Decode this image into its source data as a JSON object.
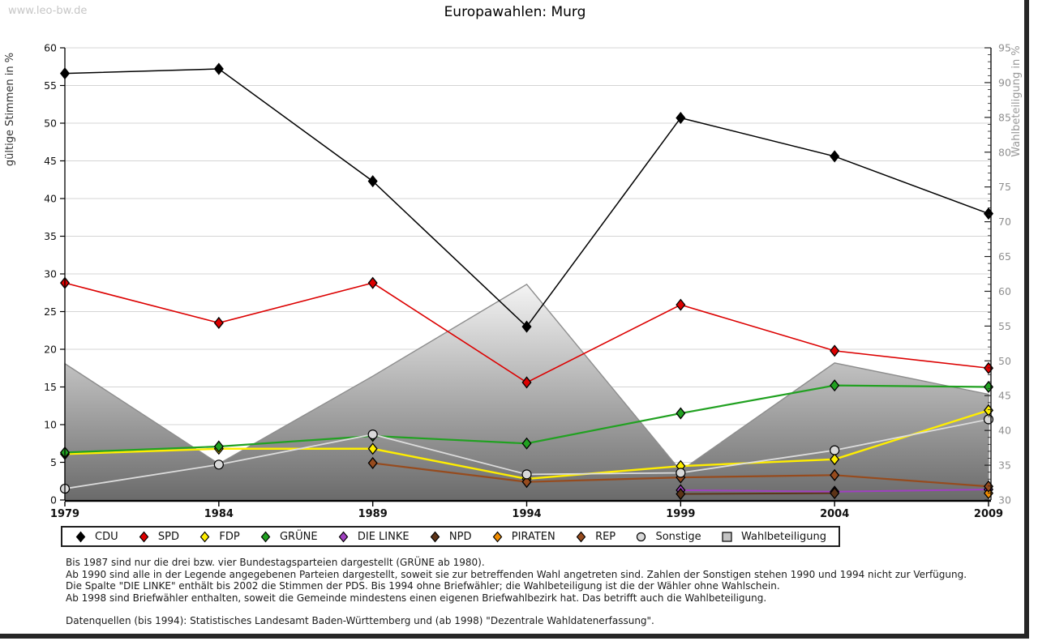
{
  "watermark": "www.leo-bw.de",
  "title": "Europawahlen: Murg",
  "notes": [
    "Bis 1987 sind nur die drei bzw. vier Bundestagsparteien dargestellt (GRÜNE ab 1980).",
    "Ab 1990 sind alle in der Legende angegebenen Parteien dargestellt, soweit sie zur betreffenden Wahl angetreten sind. Zahlen der Sonstigen stehen 1990 und 1994 nicht zur Verfügung.",
    "Die Spalte \"DIE LINKE\" enthält bis 2002 die Stimmen der PDS. Bis 1994 ohne Briefwähler; die Wahlbeteiligung ist die der Wähler ohne Wahlschein.",
    "Ab 1998 sind Briefwähler enthalten, soweit die Gemeinde mindestens einen eigenen Briefwahlbezirk hat. Das betrifft auch die Wahlbeteiligung."
  ],
  "source": "Datenquellen (bis 1994): Statistisches Landesamt Baden-Württemberg und (ab 1998) \"Dezentrale Wahldatenerfassung\".",
  "chart_data": {
    "type": "line",
    "title": "Europawahlen: Murg",
    "x": [
      1979,
      1984,
      1989,
      1994,
      1999,
      2004,
      2009
    ],
    "left_axis": {
      "label": "gültige Stimmen in %",
      "min": 0,
      "max": 60,
      "step": 5
    },
    "right_axis": {
      "label": "Wahlbeteiligung in %",
      "min": 30,
      "max": 95,
      "step": 5
    },
    "grid": true,
    "legend_position": "bottom",
    "series": [
      {
        "name": "CDU",
        "color": "#000000",
        "marker": "diamond",
        "axis": "left",
        "values": [
          56.6,
          57.2,
          42.3,
          23.0,
          50.7,
          45.6,
          38.0
        ]
      },
      {
        "name": "SPD",
        "color": "#dc0000",
        "marker": "diamond",
        "axis": "left",
        "values": [
          28.8,
          23.5,
          28.8,
          15.6,
          25.9,
          19.8,
          17.5
        ]
      },
      {
        "name": "FDP",
        "color": "#ffee00",
        "marker": "diamond",
        "axis": "left",
        "values": [
          6.1,
          6.8,
          6.8,
          2.8,
          4.5,
          5.4,
          11.9
        ]
      },
      {
        "name": "GRÜNE",
        "color": "#21a121",
        "marker": "diamond",
        "axis": "left",
        "values": [
          6.3,
          7.1,
          8.5,
          7.5,
          11.5,
          15.2,
          15.0
        ]
      },
      {
        "name": "DIE LINKE",
        "color": "#a040c0",
        "marker": "diamond",
        "axis": "left",
        "values": [
          null,
          null,
          null,
          null,
          1.3,
          1.1,
          1.4
        ]
      },
      {
        "name": "NPD",
        "color": "#5c3317",
        "marker": "diamond",
        "axis": "left",
        "values": [
          null,
          null,
          null,
          null,
          0.8,
          0.9,
          null
        ]
      },
      {
        "name": "PIRATEN",
        "color": "#f08c00",
        "marker": "diamond",
        "axis": "left",
        "values": [
          null,
          null,
          null,
          null,
          null,
          null,
          0.9
        ]
      },
      {
        "name": "REP",
        "color": "#964b1e",
        "marker": "diamond",
        "axis": "left",
        "values": [
          null,
          null,
          4.9,
          2.4,
          3.0,
          3.3,
          1.8
        ]
      },
      {
        "name": "Sonstige",
        "color": "#d9d9d9",
        "line_color": "#dcdcdc",
        "marker": "circle",
        "axis": "left",
        "values": [
          1.5,
          4.7,
          8.7,
          3.4,
          3.6,
          6.6,
          10.7
        ]
      },
      {
        "name": "Wahlbeteiligung",
        "color": "#c4c4c4",
        "marker": "square",
        "axis": "right",
        "style": "area",
        "values": [
          49.6,
          35.2,
          47.8,
          61.0,
          34.2,
          49.7,
          45.2
        ]
      }
    ]
  }
}
